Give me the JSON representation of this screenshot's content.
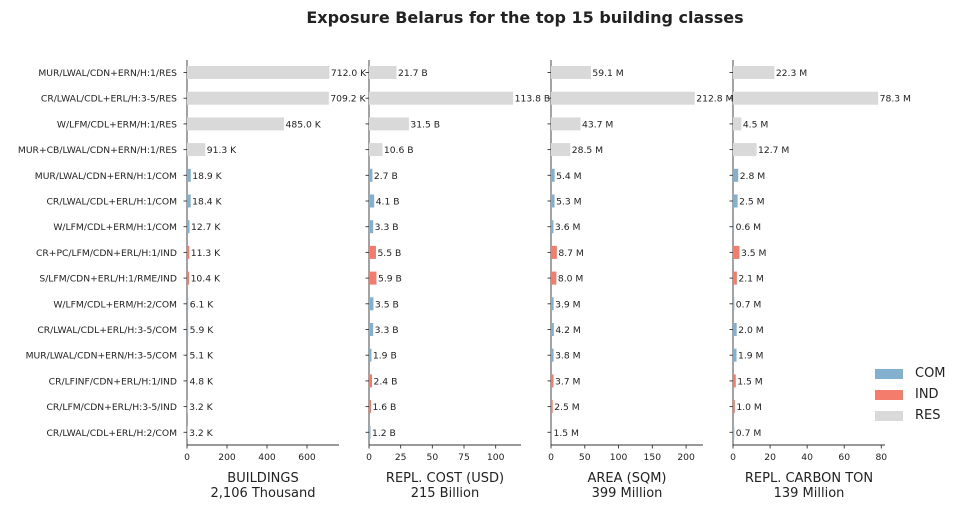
{
  "title": "Exposure Belarus for the top 15 building classes",
  "colors": {
    "COM": "#84b0d0",
    "IND": "#f47c6c",
    "RES": "#d9d9d9"
  },
  "legend": [
    {
      "key": "COM",
      "label": "COM"
    },
    {
      "key": "IND",
      "label": "IND"
    },
    {
      "key": "RES",
      "label": "RES"
    }
  ],
  "chart_data": {
    "type": "bar",
    "orientation": "horizontal",
    "categories": [
      "MUR/LWAL/CDN+ERN/H:1/RES",
      "CR/LWAL/CDL+ERL/H:3-5/RES",
      "W/LFM/CDL+ERM/H:1/RES",
      "MUR+CB/LWAL/CDN+ERN/H:1/RES",
      "MUR/LWAL/CDN+ERN/H:1/COM",
      "CR/LWAL/CDL+ERL/H:1/COM",
      "W/LFM/CDL+ERM/H:1/COM",
      "CR+PC/LFM/CDN+ERL/H:1/IND",
      "S/LFM/CDN+ERL/H:1/RME/IND",
      "W/LFM/CDL+ERM/H:2/COM",
      "CR/LWAL/CDL+ERL/H:3-5/COM",
      "MUR/LWAL/CDN+ERN/H:3-5/COM",
      "CR/LFINF/CDN+ERL/H:1/IND",
      "CR/LFM/CDN+ERL/H:3-5/IND",
      "CR/LWAL/CDL+ERL/H:2/COM"
    ],
    "occupancy": [
      "RES",
      "RES",
      "RES",
      "RES",
      "COM",
      "COM",
      "COM",
      "IND",
      "IND",
      "COM",
      "COM",
      "COM",
      "IND",
      "IND",
      "COM"
    ],
    "panels": [
      {
        "xlabel": "BUILDINGS",
        "total": "2,106 Thousand",
        "xlim": [
          0,
          760
        ],
        "ticks": [
          0,
          200,
          400,
          600
        ],
        "values": [
          712.0,
          709.2,
          485.0,
          91.3,
          18.9,
          18.4,
          12.7,
          11.3,
          10.4,
          6.1,
          5.9,
          5.1,
          4.8,
          3.2,
          3.2
        ],
        "labels": [
          "712.0 K",
          "709.2 K",
          "485.0 K",
          "91.3 K",
          "18.9 K",
          "18.4 K",
          "12.7 K",
          "11.3 K",
          "10.4 K",
          "6.1 K",
          "5.9 K",
          "5.1 K",
          "4.8 K",
          "3.2 K",
          "3.2 K"
        ]
      },
      {
        "xlabel": "REPL. COST (USD)",
        "total": "215 Billion",
        "xlim": [
          0,
          120
        ],
        "ticks": [
          0,
          25,
          50,
          75,
          100
        ],
        "values": [
          21.7,
          113.8,
          31.5,
          10.6,
          2.7,
          4.1,
          3.3,
          5.5,
          5.9,
          3.5,
          3.3,
          1.9,
          2.4,
          1.6,
          1.2
        ],
        "labels": [
          "21.7 B",
          "113.8 B",
          "31.5 B",
          "10.6 B",
          "2.7 B",
          "4.1 B",
          "3.3 B",
          "5.5 B",
          "5.9 B",
          "3.5 B",
          "3.3 B",
          "1.9 B",
          "2.4 B",
          "1.6 B",
          "1.2 B"
        ]
      },
      {
        "xlabel": "AREA (SQM)",
        "total": "399 Million",
        "xlim": [
          0,
          225
        ],
        "ticks": [
          0,
          50,
          100,
          150,
          200
        ],
        "values": [
          59.1,
          212.8,
          43.7,
          28.5,
          5.4,
          5.3,
          3.6,
          8.7,
          8.0,
          3.9,
          4.2,
          3.8,
          3.7,
          2.5,
          1.5
        ],
        "labels": [
          "59.1 M",
          "212.8 M",
          "43.7 M",
          "28.5 M",
          "5.4 M",
          "5.3 M",
          "3.6 M",
          "8.7 M",
          "8.0 M",
          "3.9 M",
          "4.2 M",
          "3.8 M",
          "3.7 M",
          "2.5 M",
          "1.5 M"
        ]
      },
      {
        "xlabel": "REPL. CARBON TON",
        "total": "139 Million",
        "xlim": [
          0,
          82
        ],
        "ticks": [
          0,
          20,
          40,
          60,
          80
        ],
        "values": [
          22.3,
          78.3,
          4.5,
          12.7,
          2.8,
          2.5,
          0.6,
          3.5,
          2.1,
          0.7,
          2.0,
          1.9,
          1.5,
          1.0,
          0.7
        ],
        "labels": [
          "22.3 M",
          "78.3 M",
          "4.5 M",
          "12.7 M",
          "2.8 M",
          "2.5 M",
          "0.6 M",
          "3.5 M",
          "2.1 M",
          "0.7 M",
          "2.0 M",
          "1.9 M",
          "1.5 M",
          "1.0 M",
          "0.7 M"
        ]
      }
    ],
    "legend_position": "bottom-right",
    "grid": false
  }
}
